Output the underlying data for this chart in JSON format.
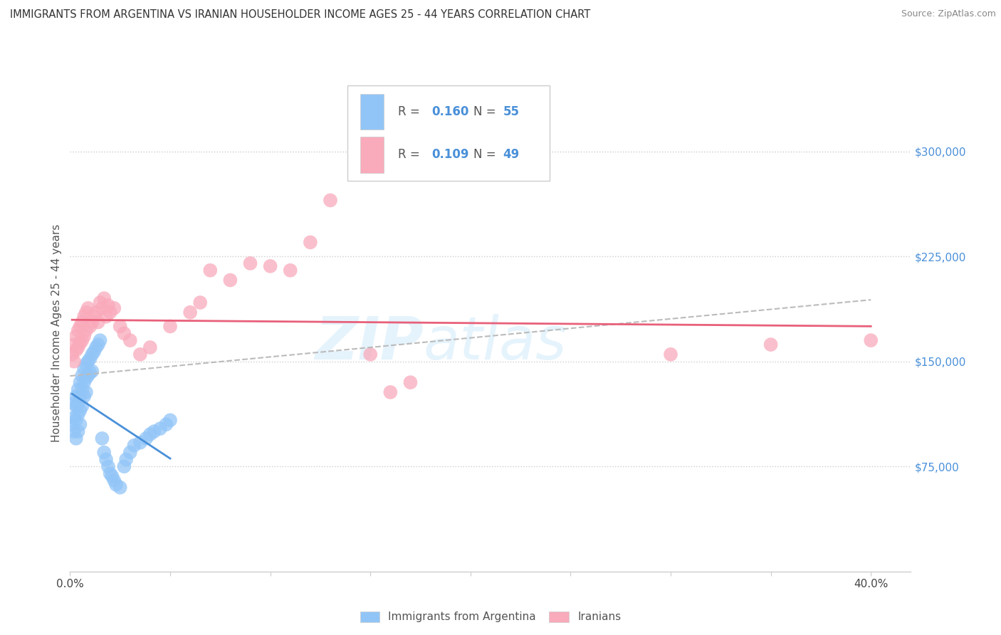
{
  "title": "IMMIGRANTS FROM ARGENTINA VS IRANIAN HOUSEHOLDER INCOME AGES 25 - 44 YEARS CORRELATION CHART",
  "source": "Source: ZipAtlas.com",
  "ylabel": "Householder Income Ages 25 - 44 years",
  "ytick_labels": [
    "$75,000",
    "$150,000",
    "$225,000",
    "$300,000"
  ],
  "ytick_values": [
    75000,
    150000,
    225000,
    300000
  ],
  "ylim": [
    0,
    340000
  ],
  "xlim": [
    0.0,
    0.42
  ],
  "argentina_R": "0.160",
  "argentina_N": "55",
  "iran_R": "0.109",
  "iran_N": "49",
  "argentina_color": "#92C5F7",
  "iran_color": "#F9AABB",
  "argentina_line_color": "#4A90D9",
  "iran_line_color": "#E8607A",
  "trendline_dash_color": "#BBBBBB",
  "background_color": "#FFFFFF",
  "legend_label_argentina": "Immigrants from Argentina",
  "legend_label_iran": "Iranians",
  "argentina_x": [
    0.001,
    0.002,
    0.002,
    0.002,
    0.003,
    0.003,
    0.003,
    0.003,
    0.004,
    0.004,
    0.004,
    0.004,
    0.005,
    0.005,
    0.005,
    0.005,
    0.006,
    0.006,
    0.006,
    0.007,
    0.007,
    0.007,
    0.008,
    0.008,
    0.008,
    0.009,
    0.009,
    0.01,
    0.01,
    0.011,
    0.011,
    0.012,
    0.013,
    0.014,
    0.015,
    0.016,
    0.017,
    0.018,
    0.019,
    0.02,
    0.021,
    0.022,
    0.023,
    0.025,
    0.027,
    0.028,
    0.03,
    0.032,
    0.035,
    0.038,
    0.04,
    0.042,
    0.045,
    0.048,
    0.05
  ],
  "argentina_y": [
    105000,
    120000,
    110000,
    100000,
    125000,
    118000,
    108000,
    95000,
    130000,
    120000,
    112000,
    100000,
    135000,
    125000,
    115000,
    105000,
    140000,
    130000,
    118000,
    145000,
    135000,
    125000,
    148000,
    138000,
    128000,
    150000,
    140000,
    152000,
    142000,
    155000,
    143000,
    157000,
    160000,
    162000,
    165000,
    95000,
    85000,
    80000,
    75000,
    70000,
    68000,
    65000,
    62000,
    60000,
    75000,
    80000,
    85000,
    90000,
    92000,
    95000,
    98000,
    100000,
    102000,
    105000,
    108000
  ],
  "iran_x": [
    0.001,
    0.002,
    0.002,
    0.003,
    0.003,
    0.004,
    0.004,
    0.005,
    0.005,
    0.006,
    0.006,
    0.007,
    0.007,
    0.008,
    0.008,
    0.009,
    0.01,
    0.011,
    0.012,
    0.013,
    0.014,
    0.015,
    0.016,
    0.017,
    0.018,
    0.019,
    0.02,
    0.022,
    0.025,
    0.027,
    0.03,
    0.035,
    0.04,
    0.05,
    0.06,
    0.065,
    0.07,
    0.08,
    0.09,
    0.1,
    0.11,
    0.12,
    0.13,
    0.15,
    0.16,
    0.17,
    0.3,
    0.35,
    0.4
  ],
  "iran_y": [
    155000,
    162000,
    150000,
    168000,
    158000,
    172000,
    160000,
    175000,
    163000,
    178000,
    165000,
    182000,
    168000,
    185000,
    172000,
    188000,
    175000,
    178000,
    182000,
    185000,
    178000,
    192000,
    188000,
    195000,
    182000,
    190000,
    185000,
    188000,
    175000,
    170000,
    165000,
    155000,
    160000,
    175000,
    185000,
    192000,
    215000,
    208000,
    220000,
    218000,
    215000,
    235000,
    265000,
    155000,
    128000,
    135000,
    155000,
    162000,
    165000
  ]
}
